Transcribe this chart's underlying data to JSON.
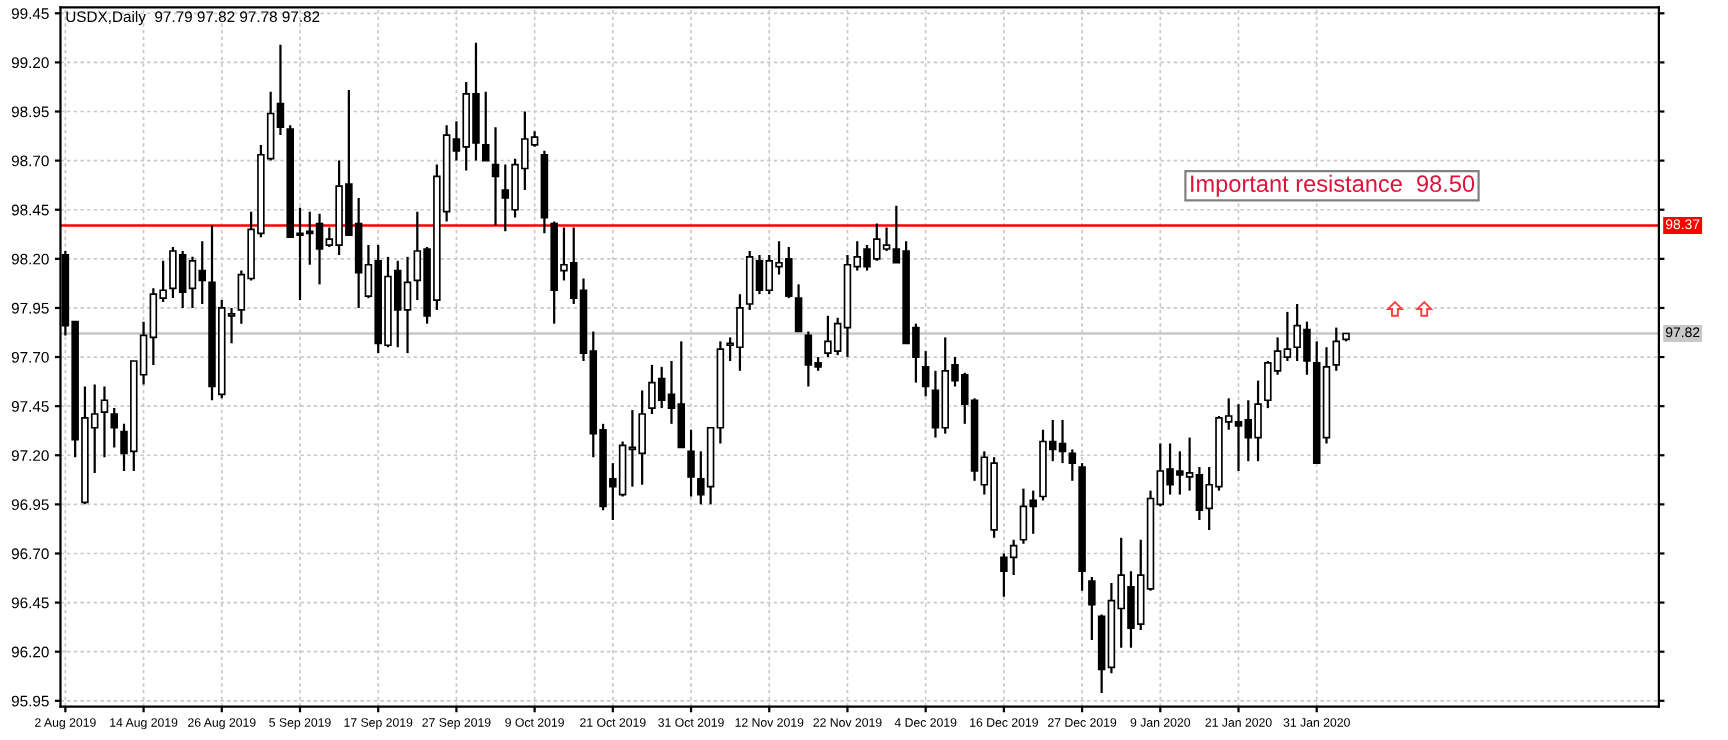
{
  "chart_data": {
    "type": "candlestick",
    "title": "USDX,Daily  97.79 97.82 97.78 97.82",
    "categories": [
      "2 Aug 2019",
      null,
      null,
      null,
      null,
      null,
      null,
      null,
      "14 Aug 2019",
      null,
      null,
      null,
      null,
      null,
      null,
      null,
      "26 Aug 2019",
      null,
      null,
      null,
      null,
      null,
      null,
      null,
      "5 Sep 2019",
      null,
      null,
      null,
      null,
      null,
      null,
      null,
      "17 Sep 2019",
      null,
      null,
      null,
      null,
      null,
      null,
      null,
      "27 Sep 2019",
      null,
      null,
      null,
      null,
      null,
      null,
      null,
      "9 Oct 2019",
      null,
      null,
      null,
      null,
      null,
      null,
      null,
      "21 Oct 2019",
      null,
      null,
      null,
      null,
      null,
      null,
      null,
      "31 Oct 2019",
      null,
      null,
      null,
      null,
      null,
      null,
      null,
      "12 Nov 2019",
      null,
      null,
      null,
      null,
      null,
      null,
      null,
      "22 Nov 2019",
      null,
      null,
      null,
      null,
      null,
      null,
      null,
      "4 Dec 2019",
      null,
      null,
      null,
      null,
      null,
      null,
      null,
      "16 Dec 2019",
      null,
      null,
      null,
      null,
      null,
      null,
      null,
      "27 Dec 2019",
      null,
      null,
      null,
      null,
      null,
      null,
      null,
      "9 Jan 2020",
      null,
      null,
      null,
      null,
      null,
      null,
      null,
      "21 Jan 2020",
      null,
      null,
      null,
      null,
      null,
      null,
      null,
      "31 Jan 2020",
      null,
      null,
      null
    ],
    "ohlc": [
      [
        98.22,
        98.24,
        97.81,
        97.86
      ],
      [
        97.88,
        97.88,
        97.19,
        97.28
      ],
      [
        96.96,
        97.55,
        96.95,
        97.39
      ],
      [
        97.34,
        97.56,
        97.11,
        97.41
      ],
      [
        97.42,
        97.55,
        97.19,
        97.48
      ],
      [
        97.41,
        97.44,
        97.24,
        97.34
      ],
      [
        97.32,
        97.36,
        97.12,
        97.21
      ],
      [
        97.22,
        97.68,
        97.12,
        97.68
      ],
      [
        97.61,
        97.88,
        97.56,
        97.81
      ],
      [
        97.8,
        98.05,
        97.66,
        98.02
      ],
      [
        98.0,
        98.19,
        97.98,
        98.04
      ],
      [
        98.05,
        98.26,
        98.0,
        98.24
      ],
      [
        98.22,
        98.24,
        97.95,
        98.03
      ],
      [
        98.05,
        98.21,
        97.95,
        98.19
      ],
      [
        98.14,
        98.29,
        97.97,
        98.09
      ],
      [
        98.08,
        98.37,
        97.48,
        97.55
      ],
      [
        97.51,
        97.99,
        97.49,
        97.95
      ],
      [
        97.91,
        97.95,
        97.77,
        97.92
      ],
      [
        97.94,
        98.14,
        97.87,
        98.12
      ],
      [
        98.1,
        98.44,
        98.09,
        98.35
      ],
      [
        98.33,
        98.78,
        98.31,
        98.73
      ],
      [
        98.71,
        99.05,
        98.7,
        98.94
      ],
      [
        98.99,
        99.29,
        98.83,
        98.87
      ],
      [
        98.86,
        98.88,
        98.31,
        98.31
      ],
      [
        98.33,
        98.46,
        97.99,
        98.32
      ],
      [
        98.34,
        98.44,
        98.17,
        98.33
      ],
      [
        98.38,
        98.43,
        98.07,
        98.25
      ],
      [
        98.27,
        98.36,
        98.26,
        98.3
      ],
      [
        98.27,
        98.7,
        98.22,
        98.57
      ],
      [
        98.58,
        99.06,
        98.32,
        98.32
      ],
      [
        98.38,
        98.51,
        97.95,
        98.13
      ],
      [
        98.01,
        98.27,
        98.0,
        98.17
      ],
      [
        98.19,
        98.27,
        97.72,
        97.77
      ],
      [
        97.76,
        98.21,
        97.75,
        98.11
      ],
      [
        98.14,
        98.19,
        97.75,
        97.94
      ],
      [
        97.94,
        98.21,
        97.72,
        98.08
      ],
      [
        98.09,
        98.44,
        97.99,
        98.24
      ],
      [
        98.25,
        98.26,
        97.87,
        97.91
      ],
      [
        97.99,
        98.68,
        97.94,
        98.62
      ],
      [
        98.44,
        98.88,
        98.39,
        98.83
      ],
      [
        98.81,
        98.9,
        98.7,
        98.75
      ],
      [
        98.77,
        99.1,
        98.65,
        99.04
      ],
      [
        99.04,
        99.3,
        98.7,
        98.79
      ],
      [
        98.78,
        99.05,
        98.7,
        98.7
      ],
      [
        98.68,
        98.87,
        98.37,
        98.62
      ],
      [
        98.55,
        98.68,
        98.34,
        98.51
      ],
      [
        98.45,
        98.71,
        98.41,
        98.68
      ],
      [
        98.66,
        98.95,
        98.55,
        98.81
      ],
      [
        98.78,
        98.85,
        98.77,
        98.82
      ],
      [
        98.73,
        98.75,
        98.33,
        98.41
      ],
      [
        98.38,
        98.39,
        97.87,
        98.04
      ],
      [
        98.14,
        98.36,
        98.09,
        98.17
      ],
      [
        98.18,
        98.36,
        97.97,
        98.0
      ],
      [
        98.04,
        98.1,
        97.68,
        97.72
      ],
      [
        97.73,
        97.83,
        97.19,
        97.31
      ],
      [
        97.33,
        97.36,
        96.92,
        96.94
      ],
      [
        97.08,
        97.16,
        96.87,
        97.04
      ],
      [
        97.0,
        97.27,
        96.99,
        97.25
      ],
      [
        97.23,
        97.43,
        97.04,
        97.24
      ],
      [
        97.21,
        97.53,
        97.05,
        97.41
      ],
      [
        97.44,
        97.66,
        97.41,
        97.57
      ],
      [
        97.59,
        97.65,
        97.44,
        97.48
      ],
      [
        97.51,
        97.68,
        97.36,
        97.44
      ],
      [
        97.46,
        97.78,
        97.24,
        97.24
      ],
      [
        97.22,
        97.33,
        96.99,
        97.09
      ],
      [
        97.08,
        97.22,
        96.95,
        97.0
      ],
      [
        97.04,
        97.34,
        96.95,
        97.34
      ],
      [
        97.34,
        97.78,
        97.26,
        97.74
      ],
      [
        97.76,
        97.8,
        97.68,
        97.77
      ],
      [
        97.75,
        98.02,
        97.63,
        97.95
      ],
      [
        97.97,
        98.24,
        97.94,
        98.21
      ],
      [
        98.19,
        98.22,
        98.02,
        98.04
      ],
      [
        98.04,
        98.22,
        98.02,
        98.19
      ],
      [
        98.16,
        98.29,
        98.12,
        98.18
      ],
      [
        98.2,
        98.26,
        98.0,
        98.01
      ],
      [
        98.0,
        98.07,
        97.83,
        97.83
      ],
      [
        97.81,
        97.83,
        97.55,
        97.66
      ],
      [
        97.67,
        97.7,
        97.63,
        97.65
      ],
      [
        97.72,
        97.91,
        97.7,
        97.78
      ],
      [
        97.73,
        97.9,
        97.71,
        97.87
      ],
      [
        97.85,
        98.22,
        97.7,
        98.17
      ],
      [
        98.16,
        98.29,
        98.14,
        98.21
      ],
      [
        98.25,
        98.27,
        98.14,
        98.16
      ],
      [
        98.2,
        98.38,
        98.19,
        98.3
      ],
      [
        98.25,
        98.36,
        98.24,
        98.27
      ],
      [
        98.25,
        98.47,
        98.18,
        98.18
      ],
      [
        98.24,
        98.29,
        97.77,
        97.77
      ],
      [
        97.85,
        97.87,
        97.57,
        97.7
      ],
      [
        97.65,
        97.73,
        97.5,
        97.55
      ],
      [
        97.53,
        97.63,
        97.29,
        97.34
      ],
      [
        97.34,
        97.8,
        97.31,
        97.63
      ],
      [
        97.66,
        97.7,
        97.55,
        97.58
      ],
      [
        97.61,
        97.62,
        97.36,
        97.46
      ],
      [
        97.48,
        97.49,
        97.07,
        97.12
      ],
      [
        97.05,
        97.22,
        97.0,
        97.19
      ],
      [
        96.82,
        97.19,
        96.78,
        97.16
      ],
      [
        96.68,
        96.7,
        96.48,
        96.61
      ],
      [
        96.68,
        96.77,
        96.59,
        96.74
      ],
      [
        96.77,
        97.03,
        96.75,
        96.94
      ],
      [
        96.97,
        97.02,
        96.8,
        96.94
      ],
      [
        96.99,
        97.33,
        96.97,
        97.27
      ],
      [
        97.27,
        97.38,
        97.17,
        97.23
      ],
      [
        97.26,
        97.38,
        97.16,
        97.22
      ],
      [
        97.21,
        97.23,
        97.07,
        97.16
      ],
      [
        97.14,
        97.16,
        96.51,
        96.61
      ],
      [
        96.56,
        96.58,
        96.26,
        96.44
      ],
      [
        96.38,
        96.39,
        95.99,
        96.11
      ],
      [
        96.12,
        96.55,
        96.09,
        96.46
      ],
      [
        96.42,
        96.78,
        96.22,
        96.59
      ],
      [
        96.53,
        96.61,
        96.22,
        96.32
      ],
      [
        96.34,
        96.77,
        96.31,
        96.59
      ],
      [
        96.52,
        97.02,
        96.51,
        96.98
      ],
      [
        96.95,
        97.26,
        96.94,
        97.12
      ],
      [
        97.13,
        97.26,
        97.0,
        97.05
      ],
      [
        97.12,
        97.22,
        97.0,
        97.1
      ],
      [
        97.09,
        97.29,
        97.02,
        97.11
      ],
      [
        97.1,
        97.14,
        96.87,
        96.92
      ],
      [
        96.93,
        97.14,
        96.82,
        97.05
      ],
      [
        97.04,
        97.4,
        97.02,
        97.39
      ],
      [
        97.37,
        97.49,
        97.33,
        97.4
      ],
      [
        97.37,
        97.46,
        97.12,
        97.35
      ],
      [
        97.38,
        97.48,
        97.17,
        97.29
      ],
      [
        97.29,
        97.58,
        97.17,
        97.46
      ],
      [
        97.48,
        97.68,
        97.44,
        97.67
      ],
      [
        97.63,
        97.8,
        97.61,
        97.73
      ],
      [
        97.7,
        97.93,
        97.68,
        97.74
      ],
      [
        97.75,
        97.97,
        97.68,
        97.86
      ],
      [
        97.84,
        97.88,
        97.61,
        97.68
      ],
      [
        97.67,
        97.78,
        97.16,
        97.16
      ],
      [
        97.29,
        97.75,
        97.26,
        97.65
      ],
      [
        97.66,
        97.85,
        97.63,
        97.78
      ],
      [
        97.79,
        97.82,
        97.78,
        97.82
      ]
    ],
    "ylim": [
      95.92,
      99.48
    ],
    "yticks": [
      {
        "value": 95.95,
        "label": "95.95"
      },
      {
        "value": 96.2,
        "label": "96.20"
      },
      {
        "value": 96.45,
        "label": "96.45"
      },
      {
        "value": 96.7,
        "label": "96.70"
      },
      {
        "value": 96.95,
        "label": "96.95"
      },
      {
        "value": 97.2,
        "label": "97.20"
      },
      {
        "value": 97.45,
        "label": "97.45"
      },
      {
        "value": 97.7,
        "label": "97.70"
      },
      {
        "value": 97.95,
        "label": "97.95"
      },
      {
        "value": 98.2,
        "label": "98.20"
      },
      {
        "value": 98.45,
        "label": "98.45"
      },
      {
        "value": 98.7,
        "label": "98.70"
      },
      {
        "value": 98.95,
        "label": "98.95"
      },
      {
        "value": 99.2,
        "label": "99.20"
      },
      {
        "value": 99.45,
        "label": "99.45"
      }
    ],
    "grid": true,
    "ref_lines": [
      {
        "axis": "y",
        "value": 98.37,
        "label": "98.37",
        "color": "#ff0000"
      },
      {
        "axis": "y",
        "value": 97.82,
        "label": "97.82",
        "color": "#c8c8c8"
      }
    ],
    "annotations": [
      "Important resistance  98.50"
    ]
  }
}
